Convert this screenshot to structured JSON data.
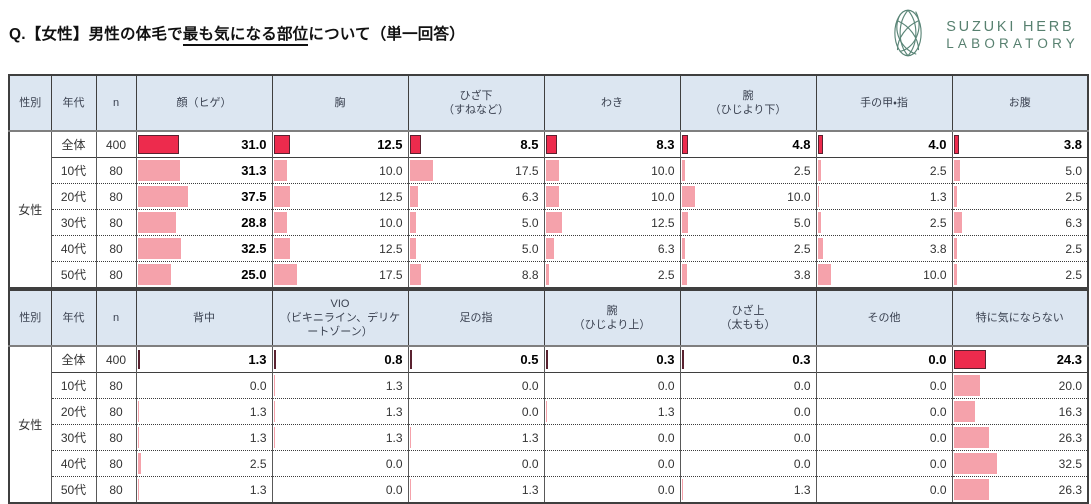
{
  "title": {
    "prefix": "Q.【女性】男性の体毛で",
    "underlined": "最も気になる部位",
    "suffix": "について（単一回答）"
  },
  "logo": {
    "line1": "SUZUKI HERB",
    "line2": "LABORATORY",
    "color": "#57806f"
  },
  "colors": {
    "header_bg": "#dce6f1",
    "bar_total": "#ed2b4d",
    "bar_age": "#f5a2ab",
    "bar_total_border": "#5a2230",
    "grid": "#595959"
  },
  "chart_data": {
    "type": "table",
    "title": "Q.【女性】男性の体毛で最も気になる部位について（単一回答）",
    "unit": "%",
    "col_headers_common": [
      "性別",
      "年代",
      "n"
    ],
    "gender": "女性",
    "sections": [
      {
        "categories": [
          "顔（ヒゲ）",
          "胸",
          "ひざ下\n（すねなど）",
          "わき",
          "腕\n（ひじより下）",
          "手の甲・指",
          "お腹"
        ],
        "bold_column_index": 0,
        "rows": [
          {
            "age": "全体",
            "n": "400",
            "total": true,
            "values": [
              31.0,
              12.5,
              8.5,
              8.3,
              4.8,
              4.0,
              3.8
            ]
          },
          {
            "age": "10代",
            "n": "80",
            "total": false,
            "values": [
              31.3,
              10.0,
              17.5,
              10.0,
              2.5,
              2.5,
              5.0
            ]
          },
          {
            "age": "20代",
            "n": "80",
            "total": false,
            "values": [
              37.5,
              12.5,
              6.3,
              10.0,
              10.0,
              1.3,
              2.5
            ]
          },
          {
            "age": "30代",
            "n": "80",
            "total": false,
            "values": [
              28.8,
              10.0,
              5.0,
              12.5,
              5.0,
              2.5,
              6.3
            ]
          },
          {
            "age": "40代",
            "n": "80",
            "total": false,
            "values": [
              32.5,
              12.5,
              5.0,
              6.3,
              2.5,
              3.8,
              2.5
            ]
          },
          {
            "age": "50代",
            "n": "80",
            "total": false,
            "values": [
              25.0,
              17.5,
              8.8,
              2.5,
              3.8,
              10.0,
              2.5
            ]
          }
        ]
      },
      {
        "categories": [
          "背中",
          "VIO\n（ビキニライン、デリケートゾーン）",
          "足の指",
          "腕\n（ひじより上）",
          "ひざ上\n（太もも）",
          "その他",
          "特に気にならない"
        ],
        "bold_column_index": -1,
        "rows": [
          {
            "age": "全体",
            "n": "400",
            "total": true,
            "values": [
              1.3,
              0.8,
              0.5,
              0.3,
              0.3,
              0.0,
              24.3
            ]
          },
          {
            "age": "10代",
            "n": "80",
            "total": false,
            "values": [
              0.0,
              1.3,
              0.0,
              0.0,
              0.0,
              0.0,
              20.0
            ]
          },
          {
            "age": "20代",
            "n": "80",
            "total": false,
            "values": [
              1.3,
              1.3,
              0.0,
              1.3,
              0.0,
              0.0,
              16.3
            ]
          },
          {
            "age": "30代",
            "n": "80",
            "total": false,
            "values": [
              1.3,
              1.3,
              1.3,
              0.0,
              0.0,
              0.0,
              26.3
            ]
          },
          {
            "age": "40代",
            "n": "80",
            "total": false,
            "values": [
              2.5,
              0.0,
              0.0,
              0.0,
              0.0,
              0.0,
              32.5
            ]
          },
          {
            "age": "50代",
            "n": "80",
            "total": false,
            "values": [
              1.3,
              0.0,
              1.3,
              0.0,
              1.3,
              0.0,
              26.3
            ]
          }
        ]
      }
    ]
  }
}
